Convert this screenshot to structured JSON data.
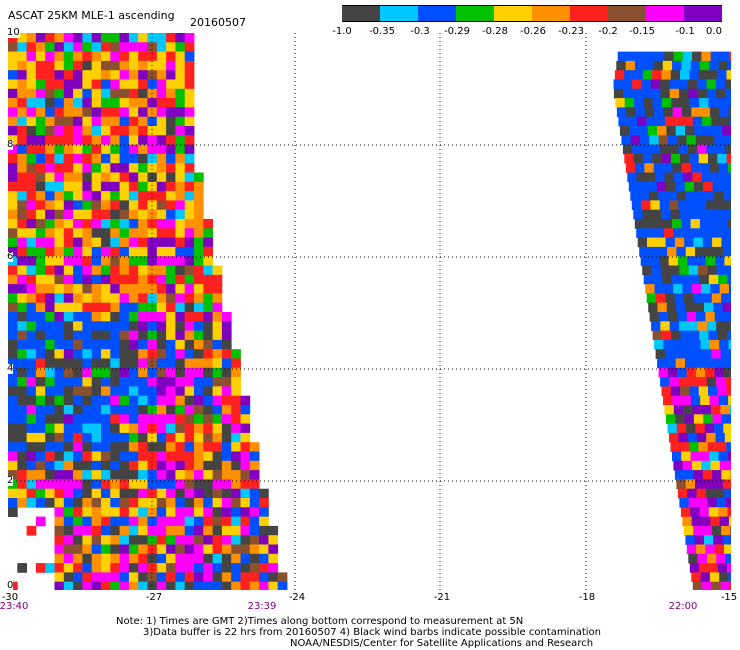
{
  "header": {
    "title": "ASCAT 25KM MLE-1 ascending",
    "date": "20160507"
  },
  "colorbar": {
    "colors": [
      "#444444",
      "#00c8ff",
      "#0050ff",
      "#00c000",
      "#ffd000",
      "#ff9000",
      "#ff2020",
      "#8b5030",
      "#ff00ff",
      "#8000c0"
    ],
    "labels": [
      "-1.0",
      "-0.35",
      "-0.3",
      "-0.29",
      "-0.28",
      "-0.26",
      "-0.23",
      "-0.2",
      "-0.15",
      "-0.1",
      "0.0"
    ]
  },
  "map": {
    "lat_labels": [
      "10",
      "8",
      "6",
      "4",
      "2",
      "0"
    ],
    "lon_labels": [
      "-30",
      "-27",
      "-24",
      "-21",
      "-18",
      "-15"
    ],
    "time_labels": [
      "23:40",
      "23:39",
      "22:00"
    ]
  },
  "notes": {
    "line1": "Note: 1) Times are GMT 2)Times along bottom correspond to measurement at 5N",
    "line2": "3)Data buffer is 22 hrs from 20160507 4) Black wind barbs indicate possible contamination",
    "line3": "NOAA/NESDIS/Center for Satellite Applications and Research"
  }
}
